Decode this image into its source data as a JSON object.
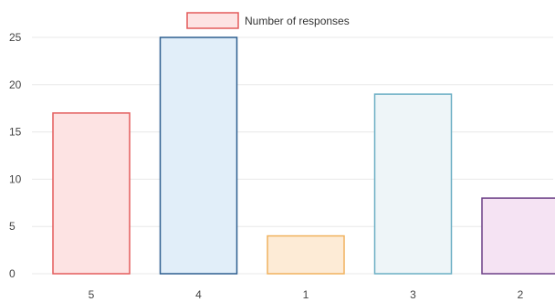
{
  "chart_data": {
    "type": "bar",
    "categories": [
      "5",
      "4",
      "1",
      "3",
      "2"
    ],
    "series": [
      {
        "name": "Number of responses",
        "values": [
          17,
          25,
          4,
          19,
          8
        ]
      }
    ],
    "ylim": [
      0,
      25
    ],
    "yticks": [
      "0",
      "5",
      "10",
      "15",
      "20",
      "25"
    ],
    "grid": true,
    "legend": "top-center",
    "bar_fill_colors": [
      "#fde3e3",
      "#e1eef9",
      "#fdebd6",
      "#eef5f8",
      "#f5e3f3"
    ],
    "bar_stroke_colors": [
      "#e35b5b",
      "#2d5e8f",
      "#f0b25e",
      "#6aaec4",
      "#6b3e86"
    ],
    "legend_fill_color": "#fde3e3",
    "legend_stroke_color": "#e35b5b"
  }
}
